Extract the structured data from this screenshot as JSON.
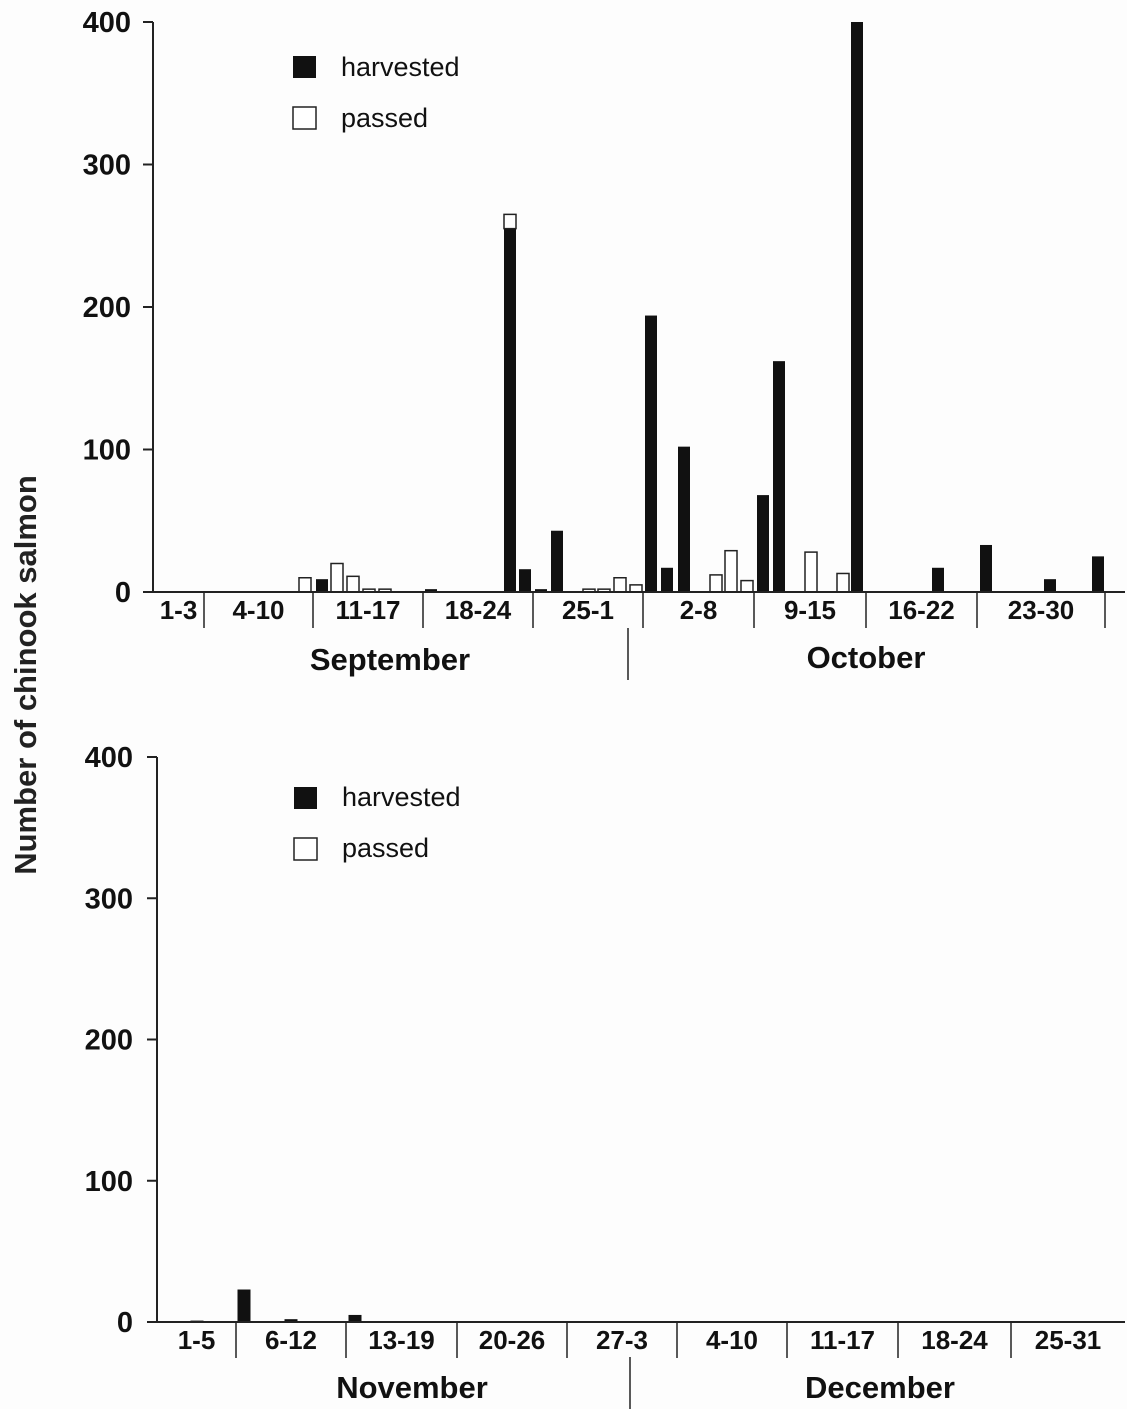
{
  "colors": {
    "harvested": "#111111",
    "passed": "#ffffff",
    "axis": "#222222"
  },
  "ylabel": "Number of chinook salmon",
  "chart_data": [
    {
      "type": "bar",
      "ylabel": "Number of chinook salmon",
      "ylim": [
        0,
        400
      ],
      "yticks": [
        0,
        100,
        200,
        300,
        400
      ],
      "legend": {
        "placement": "top-left",
        "entries": [
          "harvested",
          "passed"
        ]
      },
      "week_labels": [
        "1-3",
        "4-10",
        "11-17",
        "18-24",
        "25-1",
        "2-8",
        "9-15",
        "16-22",
        "23-30"
      ],
      "months": [
        "September",
        "October"
      ],
      "x_unit": "day (Sep 1 = 1)",
      "series": [
        {
          "name": "harvested",
          "x": [
            2,
            3,
            4,
            5,
            6,
            7,
            8,
            9,
            10,
            11,
            12,
            13,
            14,
            15,
            16,
            17,
            18,
            19,
            20,
            21,
            22,
            23,
            24,
            25,
            26,
            27,
            28,
            29,
            30,
            31,
            32,
            33,
            34,
            35,
            36,
            37,
            38,
            39,
            40,
            41,
            42,
            43,
            44,
            45,
            46,
            47,
            48,
            49,
            50,
            51,
            52,
            53,
            54,
            55,
            56,
            57,
            58,
            59,
            60,
            61
          ],
          "values": [
            0,
            0,
            0,
            0,
            0,
            0,
            0,
            0,
            0,
            0,
            0,
            9,
            0,
            0,
            0,
            0,
            0,
            2,
            0,
            0,
            0,
            0,
            0,
            255,
            16,
            0,
            2,
            43,
            0,
            0,
            0,
            0,
            0,
            0,
            0,
            194,
            17,
            0,
            102,
            0,
            0,
            0,
            0,
            0,
            0,
            68,
            162,
            0,
            0,
            0,
            0,
            0,
            400,
            0,
            0,
            0,
            0,
            0,
            0,
            0
          ]
        },
        {
          "name": "passed",
          "x": [
            11,
            12,
            13,
            14,
            15,
            24,
            30,
            31,
            32,
            33,
            34,
            35,
            36,
            37,
            38,
            39,
            40,
            41,
            42,
            43,
            44,
            45,
            46,
            47,
            48,
            49,
            50,
            51,
            52,
            53,
            54,
            55,
            56,
            57,
            58,
            59,
            60,
            61
          ],
          "values": [
            10,
            0,
            20,
            11,
            2,
            10,
            2,
            2,
            10,
            5,
            0,
            0,
            0,
            0,
            0,
            0,
            12,
            29,
            8,
            0,
            0,
            0,
            0,
            0,
            0,
            0,
            28,
            0,
            13,
            0,
            0,
            0,
            0,
            0,
            0,
            0,
            0,
            0
          ]
        }
      ],
      "notes_passed_top_of_sep24": 10
    },
    {
      "type": "bar",
      "ylabel": "Number of chinook salmon",
      "ylim": [
        0,
        400
      ],
      "yticks": [
        0,
        100,
        200,
        300,
        400
      ],
      "legend": {
        "placement": "top-left",
        "entries": [
          "harvested",
          "passed"
        ]
      },
      "week_labels": [
        "1-5",
        "6-12",
        "13-19",
        "20-26",
        "27-3",
        "4-10",
        "11-17",
        "18-24",
        "25-31"
      ],
      "months": [
        "November",
        "December"
      ],
      "series": [
        {
          "name": "harvested",
          "values": [
            0,
            1,
            0,
            0,
            23,
            0,
            0,
            2,
            0,
            0,
            0,
            0,
            5
          ]
        },
        {
          "name": "passed",
          "values": []
        }
      ]
    }
  ]
}
